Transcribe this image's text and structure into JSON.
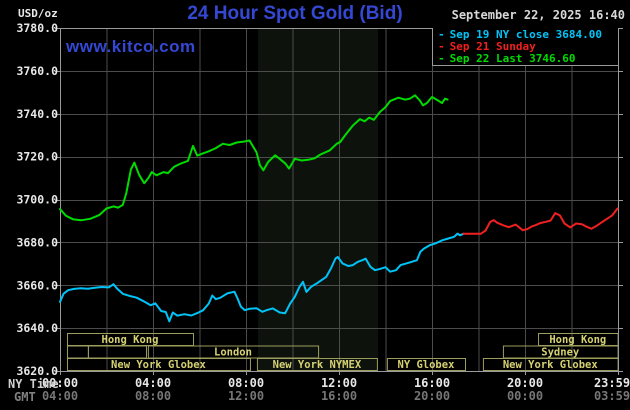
{
  "header": {
    "units": "USD/oz",
    "title": "24 Hour Spot Gold (Bid)",
    "datetime": "September 22, 2025 16:40",
    "watermark": "www.kitco.com"
  },
  "legend": [
    {
      "label": "Sep 19 NY close 3684.00",
      "color": "#00c4f8"
    },
    {
      "label": "Sep 21 Sunday",
      "color": "#f02020"
    },
    {
      "label": "Sep 22 Last 3746.60",
      "color": "#00dc00"
    }
  ],
  "colors": {
    "background": "#000000",
    "plot_border": "#9a9a9a",
    "gridline": "#4c4c4c",
    "highlight_band": "#0d120d",
    "session_border": "#9d9d5c",
    "session_text": "#d6d272",
    "axis_text_primary": "#e8e8e8",
    "axis_text_secondary": "#767676",
    "title_blue": "#3448d4"
  },
  "chart_data": {
    "type": "line",
    "title": "24 Hour Spot Gold (Bid)",
    "ylabel": "USD/oz",
    "x_axis": {
      "label_primary": "NY Time",
      "label_secondary": "GMT",
      "range_hours": [
        0,
        24
      ],
      "gridline_every_hours": 2,
      "ticks": [
        {
          "h": 0,
          "ny": "00:00",
          "gmt": "04:00"
        },
        {
          "h": 4,
          "ny": "04:00",
          "gmt": "08:00"
        },
        {
          "h": 8,
          "ny": "08:00",
          "gmt": "12:00"
        },
        {
          "h": 12,
          "ny": "12:00",
          "gmt": "16:00"
        },
        {
          "h": 16,
          "ny": "16:00",
          "gmt": "20:00"
        },
        {
          "h": 20,
          "ny": "20:00",
          "gmt": "00:00"
        },
        {
          "h": 23.983,
          "ny": "23:59",
          "gmt": "03:59"
        }
      ]
    },
    "y_axis": {
      "min": 3620,
      "max": 3780,
      "tick_step": 20,
      "ticks": [
        {
          "v": 3780,
          "label": "3780.0"
        },
        {
          "v": 3760,
          "label": "3760.0"
        },
        {
          "v": 3740,
          "label": "3740.0"
        },
        {
          "v": 3720,
          "label": "3720.0"
        },
        {
          "v": 3700,
          "label": "3700.0"
        },
        {
          "v": 3680,
          "label": "3680.0"
        },
        {
          "v": 3660,
          "label": "3660.0"
        },
        {
          "v": 3640,
          "label": "3640.0"
        },
        {
          "v": 3620,
          "label": "3620.0"
        }
      ]
    },
    "highlight_band_hours": [
      8.52,
      13.68
    ],
    "series": [
      {
        "name": "Sep 19 NY close 3684.00",
        "color": "#00c4f8",
        "points": [
          [
            0.0,
            3652.3
          ],
          [
            0.15,
            3656.0
          ],
          [
            0.35,
            3657.7
          ],
          [
            0.6,
            3658.3
          ],
          [
            0.9,
            3658.6
          ],
          [
            1.2,
            3658.4
          ],
          [
            1.5,
            3658.8
          ],
          [
            1.8,
            3659.2
          ],
          [
            2.1,
            3659.0
          ],
          [
            2.3,
            3660.5
          ],
          [
            2.45,
            3658.5
          ],
          [
            2.7,
            3656.0
          ],
          [
            3.0,
            3655.0
          ],
          [
            3.3,
            3654.2
          ],
          [
            3.6,
            3652.5
          ],
          [
            3.9,
            3650.7
          ],
          [
            4.1,
            3651.6
          ],
          [
            4.35,
            3648.0
          ],
          [
            4.55,
            3647.5
          ],
          [
            4.7,
            3643.2
          ],
          [
            4.85,
            3647.3
          ],
          [
            5.05,
            3645.8
          ],
          [
            5.35,
            3646.5
          ],
          [
            5.65,
            3645.9
          ],
          [
            5.9,
            3647.0
          ],
          [
            6.15,
            3648.3
          ],
          [
            6.4,
            3651.5
          ],
          [
            6.55,
            3655.2
          ],
          [
            6.7,
            3653.5
          ],
          [
            6.9,
            3654.2
          ],
          [
            7.2,
            3656.2
          ],
          [
            7.5,
            3657.0
          ],
          [
            7.65,
            3653.5
          ],
          [
            7.78,
            3650.0
          ],
          [
            7.95,
            3648.4
          ],
          [
            8.15,
            3649.0
          ],
          [
            8.45,
            3649.3
          ],
          [
            8.7,
            3647.6
          ],
          [
            8.9,
            3648.4
          ],
          [
            9.15,
            3649.2
          ],
          [
            9.45,
            3647.3
          ],
          [
            9.68,
            3646.9
          ],
          [
            9.9,
            3651.5
          ],
          [
            10.1,
            3654.6
          ],
          [
            10.3,
            3659.3
          ],
          [
            10.45,
            3661.6
          ],
          [
            10.6,
            3656.9
          ],
          [
            10.8,
            3659.3
          ],
          [
            11.05,
            3660.9
          ],
          [
            11.25,
            3662.4
          ],
          [
            11.45,
            3663.9
          ],
          [
            11.65,
            3667.8
          ],
          [
            11.85,
            3672.5
          ],
          [
            11.95,
            3673.2
          ],
          [
            12.15,
            3670.2
          ],
          [
            12.4,
            3669.0
          ],
          [
            12.6,
            3669.4
          ],
          [
            12.8,
            3670.9
          ],
          [
            13.0,
            3671.7
          ],
          [
            13.15,
            3672.4
          ],
          [
            13.35,
            3668.6
          ],
          [
            13.55,
            3667.0
          ],
          [
            13.8,
            3667.7
          ],
          [
            14.0,
            3668.4
          ],
          [
            14.2,
            3666.3
          ],
          [
            14.45,
            3667.0
          ],
          [
            14.65,
            3669.4
          ],
          [
            14.9,
            3670.2
          ],
          [
            15.15,
            3671.0
          ],
          [
            15.35,
            3671.7
          ],
          [
            15.5,
            3675.6
          ],
          [
            15.65,
            3677.1
          ],
          [
            15.9,
            3678.7
          ],
          [
            16.15,
            3679.5
          ],
          [
            16.45,
            3681.0
          ],
          [
            16.7,
            3681.8
          ],
          [
            16.95,
            3682.6
          ],
          [
            17.1,
            3684.1
          ],
          [
            17.2,
            3683.3
          ],
          [
            17.35,
            3684.0
          ]
        ]
      },
      {
        "name": "Sep 21 Sunday",
        "color": "#f02020",
        "points": [
          [
            17.35,
            3684.0
          ],
          [
            18.1,
            3684.0
          ],
          [
            18.3,
            3685.5
          ],
          [
            18.5,
            3689.5
          ],
          [
            18.65,
            3690.4
          ],
          [
            18.8,
            3689.2
          ],
          [
            19.05,
            3688.0
          ],
          [
            19.3,
            3687.1
          ],
          [
            19.6,
            3688.3
          ],
          [
            19.9,
            3685.7
          ],
          [
            20.1,
            3686.2
          ],
          [
            20.3,
            3687.5
          ],
          [
            20.45,
            3688.0
          ],
          [
            20.65,
            3689.0
          ],
          [
            20.9,
            3689.6
          ],
          [
            21.1,
            3690.2
          ],
          [
            21.3,
            3693.6
          ],
          [
            21.5,
            3692.6
          ],
          [
            21.7,
            3688.8
          ],
          [
            21.95,
            3687.0
          ],
          [
            22.2,
            3688.8
          ],
          [
            22.45,
            3688.5
          ],
          [
            22.65,
            3687.3
          ],
          [
            22.85,
            3686.4
          ],
          [
            23.05,
            3687.5
          ],
          [
            23.25,
            3689.0
          ],
          [
            23.5,
            3690.8
          ],
          [
            23.75,
            3692.6
          ],
          [
            23.98,
            3695.8
          ]
        ]
      },
      {
        "name": "Sep 22 Last 3746.60",
        "color": "#00dc00",
        "points": [
          [
            0.0,
            3695.5
          ],
          [
            0.25,
            3692.5
          ],
          [
            0.55,
            3690.8
          ],
          [
            0.9,
            3690.3
          ],
          [
            1.3,
            3691.0
          ],
          [
            1.7,
            3692.8
          ],
          [
            2.0,
            3695.8
          ],
          [
            2.3,
            3696.8
          ],
          [
            2.5,
            3696.2
          ],
          [
            2.7,
            3697.5
          ],
          [
            2.85,
            3703.0
          ],
          [
            3.05,
            3714.0
          ],
          [
            3.2,
            3717.2
          ],
          [
            3.4,
            3711.5
          ],
          [
            3.62,
            3707.6
          ],
          [
            3.8,
            3710.0
          ],
          [
            3.95,
            3712.8
          ],
          [
            4.15,
            3711.3
          ],
          [
            4.45,
            3712.8
          ],
          [
            4.65,
            3712.3
          ],
          [
            4.9,
            3715.2
          ],
          [
            5.2,
            3716.8
          ],
          [
            5.5,
            3718.0
          ],
          [
            5.72,
            3725.0
          ],
          [
            5.9,
            3720.5
          ],
          [
            6.1,
            3721.3
          ],
          [
            6.4,
            3722.5
          ],
          [
            6.7,
            3724.0
          ],
          [
            7.0,
            3726.0
          ],
          [
            7.3,
            3725.4
          ],
          [
            7.6,
            3726.6
          ],
          [
            7.9,
            3727.0
          ],
          [
            8.15,
            3727.5
          ],
          [
            8.45,
            3722.0
          ],
          [
            8.6,
            3716.0
          ],
          [
            8.75,
            3713.6
          ],
          [
            8.95,
            3717.5
          ],
          [
            9.25,
            3720.6
          ],
          [
            9.45,
            3719.0
          ],
          [
            9.7,
            3716.7
          ],
          [
            9.85,
            3714.4
          ],
          [
            10.1,
            3719.0
          ],
          [
            10.4,
            3718.2
          ],
          [
            10.7,
            3718.6
          ],
          [
            10.95,
            3719.2
          ],
          [
            11.2,
            3721.0
          ],
          [
            11.6,
            3722.9
          ],
          [
            11.9,
            3726.0
          ],
          [
            12.05,
            3726.8
          ],
          [
            12.3,
            3730.5
          ],
          [
            12.6,
            3734.5
          ],
          [
            12.9,
            3737.5
          ],
          [
            13.1,
            3736.5
          ],
          [
            13.3,
            3738.2
          ],
          [
            13.5,
            3737.2
          ],
          [
            13.76,
            3740.8
          ],
          [
            14.0,
            3743.1
          ],
          [
            14.2,
            3745.9
          ],
          [
            14.55,
            3747.5
          ],
          [
            14.84,
            3746.6
          ],
          [
            15.05,
            3747.0
          ],
          [
            15.27,
            3748.6
          ],
          [
            15.48,
            3746.2
          ],
          [
            15.61,
            3743.9
          ],
          [
            15.78,
            3745.0
          ],
          [
            16.0,
            3747.8
          ],
          [
            16.2,
            3746.6
          ],
          [
            16.43,
            3745.0
          ],
          [
            16.56,
            3747.0
          ],
          [
            16.67,
            3746.6
          ]
        ]
      }
    ],
    "sessions": [
      {
        "row": 0,
        "label": "Hong Kong",
        "start_h": 0.3,
        "end_h": 5.72
      },
      {
        "row": 0,
        "label": "Hong Kong",
        "start_h": 20.56,
        "end_h": 23.983
      },
      {
        "row": 1,
        "label": "",
        "start_h": 0.3,
        "end_h": 1.2
      },
      {
        "row": 1,
        "label": "",
        "start_h": 1.2,
        "end_h": 3.7
      },
      {
        "row": 1,
        "label": "London",
        "start_h": 3.78,
        "end_h": 11.1
      },
      {
        "row": 1,
        "label": "Sydney",
        "start_h": 19.05,
        "end_h": 23.983
      },
      {
        "row": 2,
        "label": "New York Globex",
        "start_h": 0.3,
        "end_h": 8.17
      },
      {
        "row": 2,
        "label": "New York NYMEX",
        "start_h": 8.47,
        "end_h": 13.63
      },
      {
        "row": 2,
        "label": "NY Globex",
        "start_h": 14.06,
        "end_h": 17.42
      },
      {
        "row": 2,
        "label": "New York Globex",
        "start_h": 18.19,
        "end_h": 23.983
      }
    ]
  }
}
